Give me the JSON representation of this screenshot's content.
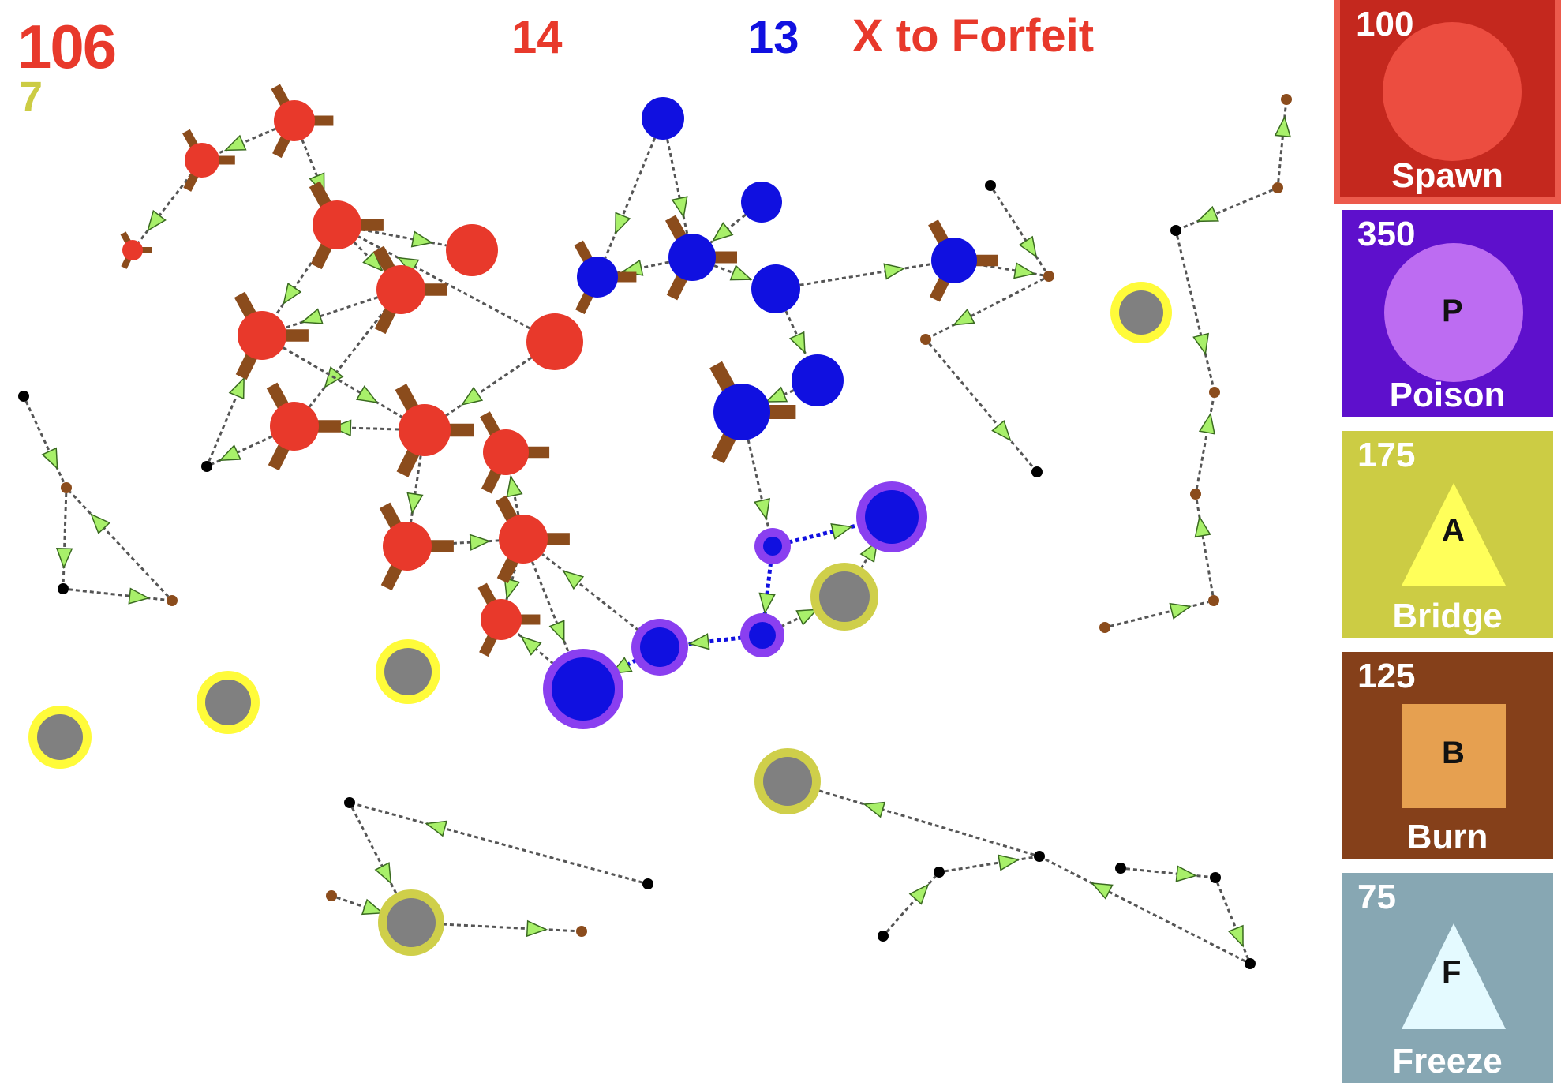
{
  "hud": {
    "money": "106",
    "income": "7",
    "red_nodes": "14",
    "blue_nodes": "13",
    "forfeit": "X to Forfeit"
  },
  "colors": {
    "red": "#e8392b",
    "blue": "#1010e0",
    "poison_ring": "#8a3ff0",
    "neutral": "#808080",
    "yellow_ring": "#fffb3a",
    "olive_ring": "#cfcf4a",
    "burn_arm": "#8b4c1c",
    "arrow": "#a8f06a"
  },
  "shop": [
    {
      "name": "Spawn",
      "cost": "100",
      "key": "",
      "icon": "circle-icon",
      "bg": "#c4281e",
      "fg": "#ec4d40",
      "selected": true
    },
    {
      "name": "Poison",
      "cost": "350",
      "key": "P",
      "icon": "circle-icon",
      "bg": "#5e10cc",
      "fg": "#bd6cf2",
      "selected": false
    },
    {
      "name": "Bridge",
      "cost": "175",
      "key": "A",
      "icon": "triangle-icon",
      "bg": "#cccc44",
      "fg": "#ffff5a",
      "selected": false
    },
    {
      "name": "Burn",
      "cost": "125",
      "key": "B",
      "icon": "square-icon",
      "bg": "#85401a",
      "fg": "#e6a050",
      "selected": false
    },
    {
      "name": "Freeze",
      "cost": "75",
      "key": "F",
      "icon": "triangle-icon",
      "bg": "#87a7b3",
      "fg": "#e4faff",
      "selected": false
    }
  ]
}
